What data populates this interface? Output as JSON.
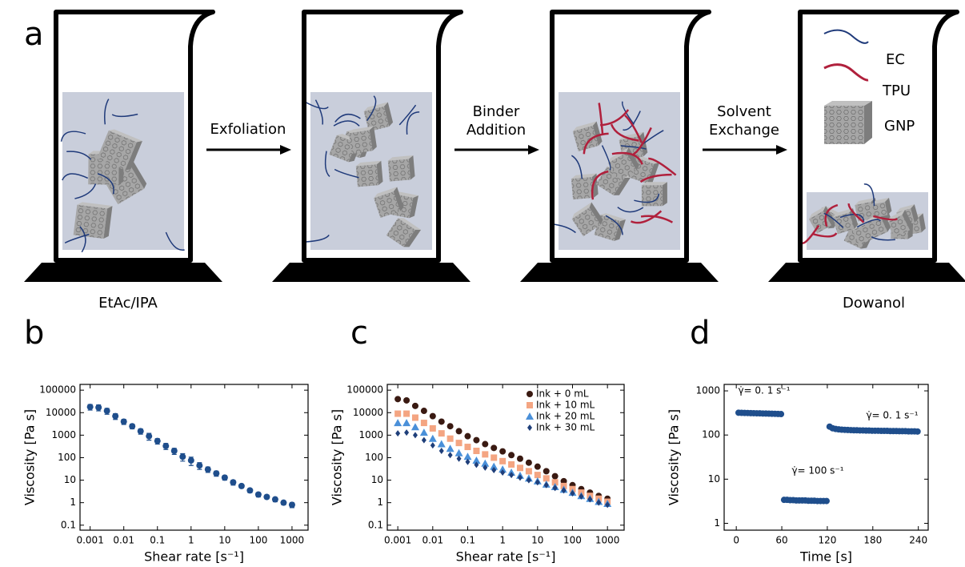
{
  "diagram": {
    "panel_label": "a",
    "arrows": [
      [
        "Exfoliation"
      ],
      [
        "Binder",
        "Addition"
      ],
      [
        "Solvent",
        "Exchange"
      ]
    ],
    "solvents": [
      "EtAc/IPA",
      "Dowanol"
    ],
    "legend": [
      "EC",
      "TPU",
      "GNP"
    ]
  },
  "chart_data": [
    {
      "type": "scatter",
      "label": "b",
      "xlabel": "Shear rate [s⁻¹]",
      "ylabel": "Viscosity [Pa s]",
      "xlog": true,
      "ylog": true,
      "xlim": [
        0.0005,
        3000
      ],
      "ylim": [
        0.06,
        180000
      ],
      "xticks": [
        0.001,
        0.01,
        0.1,
        1,
        10,
        100,
        1000
      ],
      "yticks": [
        0.1,
        1,
        10,
        100,
        1000,
        10000,
        100000
      ],
      "color": "#1f4e8c",
      "x": [
        0.001,
        0.00178,
        0.00316,
        0.00562,
        0.01,
        0.0178,
        0.0316,
        0.0562,
        0.1,
        0.178,
        0.316,
        0.562,
        1,
        1.78,
        3.16,
        5.62,
        10,
        17.8,
        31.6,
        56.2,
        100,
        178,
        316,
        562,
        1000
      ],
      "values": [
        18000,
        17000,
        12000,
        7000,
        4000,
        2500,
        1500,
        900,
        550,
        330,
        200,
        110,
        75,
        45,
        30,
        20,
        13,
        8,
        5.5,
        3.5,
        2.3,
        1.8,
        1.4,
        1.0,
        0.8
      ],
      "errors": [
        5000,
        5000,
        3500,
        2000,
        1000,
        600,
        400,
        300,
        150,
        100,
        60,
        40,
        30,
        15,
        8,
        5,
        3,
        2,
        1,
        0.7,
        0.5,
        0.3,
        0.3,
        0.2,
        0.2
      ]
    },
    {
      "type": "scatter",
      "label": "c",
      "xlabel": "Shear rate [s⁻¹]",
      "ylabel": "Viscosity [Pa s]",
      "xlog": true,
      "ylog": true,
      "xlim": [
        0.0005,
        3000
      ],
      "ylim": [
        0.06,
        180000
      ],
      "xticks": [
        0.001,
        0.01,
        0.1,
        1,
        10,
        100,
        1000
      ],
      "yticks": [
        0.1,
        1,
        10,
        100,
        1000,
        10000,
        100000
      ],
      "legend": "upper right",
      "x": [
        0.001,
        0.00178,
        0.00316,
        0.00562,
        0.01,
        0.0178,
        0.0316,
        0.0562,
        0.1,
        0.178,
        0.316,
        0.562,
        1,
        1.78,
        3.16,
        5.62,
        10,
        17.8,
        31.6,
        56.2,
        100,
        178,
        316,
        562,
        1000
      ],
      "series": [
        {
          "name": "Ink + 0 mL",
          "color": "#3a1a12",
          "marker": "circle",
          "values": [
            40000,
            35000,
            20000,
            12000,
            7000,
            4000,
            2500,
            1500,
            900,
            600,
            400,
            270,
            190,
            130,
            90,
            60,
            40,
            25,
            15,
            9,
            6,
            4,
            2.8,
            2,
            1.5
          ]
        },
        {
          "name": "Ink + 10 mL",
          "color": "#f4a582",
          "marker": "square",
          "values": [
            9000,
            9000,
            6000,
            3500,
            2000,
            1200,
            700,
            450,
            300,
            200,
            140,
            100,
            70,
            50,
            35,
            25,
            17,
            12,
            8,
            5.5,
            4,
            2.8,
            2,
            1.5,
            1.1
          ]
        },
        {
          "name": "Ink + 20 mL",
          "color": "#4a90d9",
          "marker": "triangle",
          "values": [
            3500,
            3500,
            2300,
            1300,
            700,
            400,
            250,
            160,
            110,
            75,
            55,
            40,
            30,
            22,
            16,
            12,
            9,
            6.5,
            5,
            3.8,
            2.8,
            2,
            1.5,
            1.1,
            0.9
          ]
        },
        {
          "name": "Ink + 30 mL",
          "color": "#1f3f7a",
          "marker": "diamond",
          "values": [
            1200,
            1300,
            1000,
            600,
            350,
            200,
            130,
            90,
            65,
            48,
            36,
            28,
            22,
            17,
            13,
            10,
            8,
            6,
            4.5,
            3.5,
            2.6,
            1.9,
            1.4,
            1.0,
            0.8
          ]
        }
      ]
    },
    {
      "type": "scatter",
      "label": "d",
      "xlabel": "Time [s]",
      "ylabel": "Viscosity [Pa s]",
      "xlog": false,
      "ylog": true,
      "xlim": [
        -16,
        253
      ],
      "ylim": [
        0.7,
        1400
      ],
      "xticks": [
        0,
        60,
        120,
        180,
        240
      ],
      "yticks": [
        1,
        10,
        100,
        1000
      ],
      "color": "#1f4e8c",
      "annotations": [
        "γ̇= 0. 1 s⁻¹",
        "γ̇= 100 s⁻¹",
        "γ̇= 0. 1 s⁻¹"
      ],
      "x": [
        3,
        7,
        11,
        15,
        19,
        23,
        27,
        31,
        35,
        39,
        43,
        47,
        51,
        55,
        59,
        63,
        67,
        71,
        75,
        79,
        83,
        87,
        91,
        95,
        99,
        103,
        107,
        111,
        115,
        119,
        123,
        127,
        131,
        135,
        139,
        143,
        147,
        151,
        155,
        159,
        163,
        167,
        171,
        175,
        179,
        183,
        187,
        191,
        195,
        199,
        203,
        207,
        211,
        215,
        219,
        223,
        227,
        231,
        235,
        239
      ],
      "values": [
        320,
        318,
        316,
        315,
        313,
        312,
        310,
        309,
        307,
        306,
        305,
        303,
        302,
        300,
        298,
        3.4,
        3.4,
        3.35,
        3.35,
        3.3,
        3.3,
        3.3,
        3.3,
        3.25,
        3.25,
        3.25,
        3.2,
        3.2,
        3.2,
        3.2,
        155,
        142,
        137,
        134,
        132,
        131,
        130,
        129,
        128,
        128,
        127,
        127,
        126,
        126,
        125,
        125,
        125,
        124,
        124,
        124,
        123,
        123,
        123,
        122,
        122,
        122,
        121,
        121,
        121,
        120
      ]
    }
  ]
}
